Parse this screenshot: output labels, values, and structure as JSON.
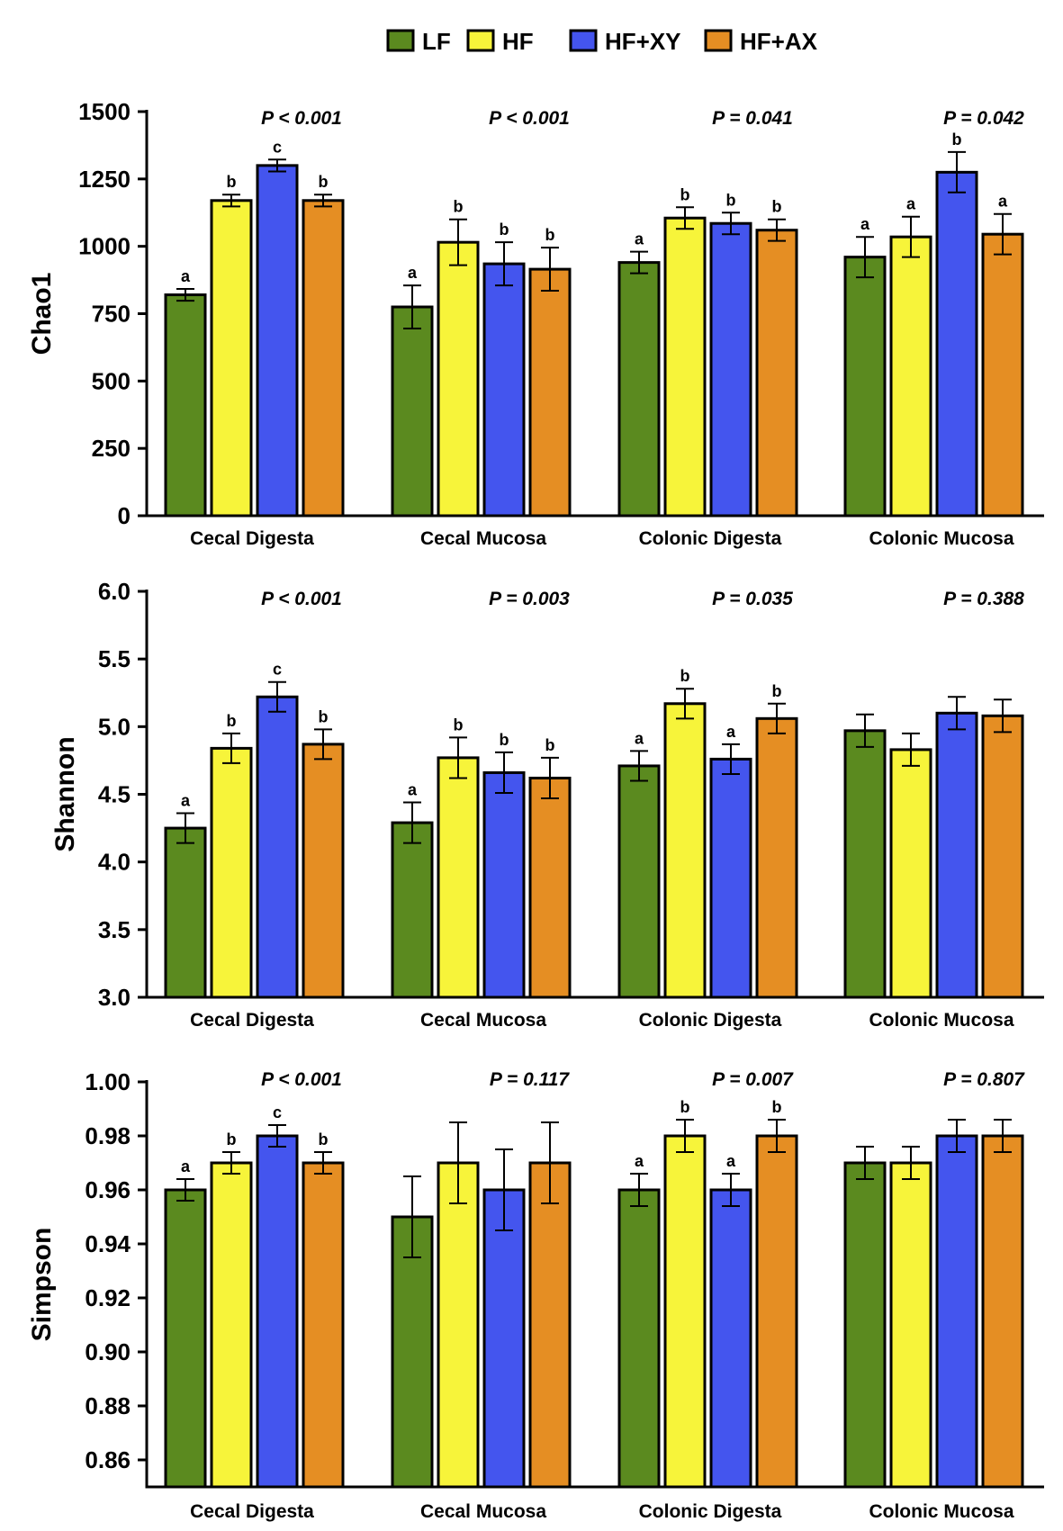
{
  "chart_data": [
    {
      "type": "bar",
      "ylabel": "Chao1",
      "ylim": [
        0,
        1500
      ],
      "yticks": [
        0,
        250,
        500,
        750,
        1000,
        1250,
        1500
      ],
      "ytick_labels": [
        "0",
        "250",
        "500",
        "750",
        "1000",
        "1250",
        "1500"
      ],
      "categories": [
        "Cecal Digesta",
        "Cecal Mucosa",
        "Colonic Digesta",
        "Colonic Mucosa"
      ],
      "p_values": [
        "P < 0.001",
        "P < 0.001",
        "P = 0.041",
        "P = 0.042"
      ],
      "series": [
        {
          "name": "LF",
          "color": "#5b8a1f",
          "values": [
            820,
            775,
            940,
            960
          ],
          "errors": [
            22,
            80,
            40,
            75
          ],
          "sig": [
            "a",
            "a",
            "a",
            "a"
          ]
        },
        {
          "name": "HF",
          "color": "#f7f43a",
          "values": [
            1170,
            1015,
            1105,
            1035
          ],
          "errors": [
            22,
            85,
            40,
            75
          ],
          "sig": [
            "b",
            "b",
            "b",
            "a"
          ]
        },
        {
          "name": "HF+XY",
          "color": "#4455ee",
          "values": [
            1300,
            935,
            1085,
            1275
          ],
          "errors": [
            22,
            80,
            40,
            75
          ],
          "sig": [
            "c",
            "b",
            "b",
            "b"
          ]
        },
        {
          "name": "HF+AX",
          "color": "#e58e23",
          "values": [
            1170,
            915,
            1060,
            1045
          ],
          "errors": [
            22,
            80,
            40,
            75
          ],
          "sig": [
            "b",
            "b",
            "b",
            "a"
          ]
        }
      ]
    },
    {
      "type": "bar",
      "ylabel": "Shannon",
      "ylim": [
        3.0,
        6.0
      ],
      "yticks": [
        3.0,
        3.5,
        4.0,
        4.5,
        5.0,
        5.5,
        6.0
      ],
      "ytick_labels": [
        "3.0",
        "3.5",
        "4.0",
        "4.5",
        "5.0",
        "5.5",
        "6.0"
      ],
      "categories": [
        "Cecal Digesta",
        "Cecal Mucosa",
        "Colonic Digesta",
        "Colonic Mucosa"
      ],
      "p_values": [
        "P < 0.001",
        "P = 0.003",
        "P = 0.035",
        "P = 0.388"
      ],
      "series": [
        {
          "name": "LF",
          "color": "#5b8a1f",
          "values": [
            4.25,
            4.29,
            4.71,
            4.97
          ],
          "errors": [
            0.11,
            0.15,
            0.11,
            0.12
          ],
          "sig": [
            "a",
            "a",
            "a",
            ""
          ]
        },
        {
          "name": "HF",
          "color": "#f7f43a",
          "values": [
            4.84,
            4.77,
            5.17,
            4.83
          ],
          "errors": [
            0.11,
            0.15,
            0.11,
            0.12
          ],
          "sig": [
            "b",
            "b",
            "b",
            ""
          ]
        },
        {
          "name": "HF+XY",
          "color": "#4455ee",
          "values": [
            5.22,
            4.66,
            4.76,
            5.1
          ],
          "errors": [
            0.11,
            0.15,
            0.11,
            0.12
          ],
          "sig": [
            "c",
            "b",
            "a",
            ""
          ]
        },
        {
          "name": "HF+AX",
          "color": "#e58e23",
          "values": [
            4.87,
            4.62,
            5.06,
            5.08
          ],
          "errors": [
            0.11,
            0.15,
            0.11,
            0.12
          ],
          "sig": [
            "b",
            "b",
            "b",
            ""
          ]
        }
      ]
    },
    {
      "type": "bar",
      "ylabel": "Simpson",
      "ylim": [
        0.85,
        1.0
      ],
      "yticks": [
        0.86,
        0.88,
        0.9,
        0.92,
        0.94,
        0.96,
        0.98,
        1.0
      ],
      "ytick_labels": [
        "0.86",
        "0.88",
        "0.90",
        "0.92",
        "0.94",
        "0.96",
        "0.98",
        "1.00"
      ],
      "categories": [
        "Cecal Digesta",
        "Cecal Mucosa",
        "Colonic Digesta",
        "Colonic Mucosa"
      ],
      "p_values": [
        "P < 0.001",
        "P = 0.117",
        "P = 0.007",
        "P = 0.807"
      ],
      "series": [
        {
          "name": "LF",
          "color": "#5b8a1f",
          "values": [
            0.96,
            0.95,
            0.96,
            0.97
          ],
          "errors": [
            0.004,
            0.015,
            0.006,
            0.006
          ],
          "sig": [
            "a",
            "",
            "a",
            ""
          ]
        },
        {
          "name": "HF",
          "color": "#f7f43a",
          "values": [
            0.97,
            0.97,
            0.98,
            0.97
          ],
          "errors": [
            0.004,
            0.015,
            0.006,
            0.006
          ],
          "sig": [
            "b",
            "",
            "b",
            ""
          ]
        },
        {
          "name": "HF+XY",
          "color": "#4455ee",
          "values": [
            0.98,
            0.96,
            0.96,
            0.98
          ],
          "errors": [
            0.004,
            0.015,
            0.006,
            0.006
          ],
          "sig": [
            "c",
            "",
            "a",
            ""
          ]
        },
        {
          "name": "HF+AX",
          "color": "#e58e23",
          "values": [
            0.97,
            0.97,
            0.98,
            0.98
          ],
          "errors": [
            0.004,
            0.015,
            0.006,
            0.006
          ],
          "sig": [
            "b",
            "",
            "b",
            ""
          ]
        }
      ]
    }
  ],
  "legend": [
    {
      "name": "LF",
      "color": "#5b8a1f"
    },
    {
      "name": "HF",
      "color": "#f7f43a"
    },
    {
      "name": "HF+XY",
      "color": "#4455ee"
    },
    {
      "name": "HF+AX",
      "color": "#e58e23"
    }
  ]
}
